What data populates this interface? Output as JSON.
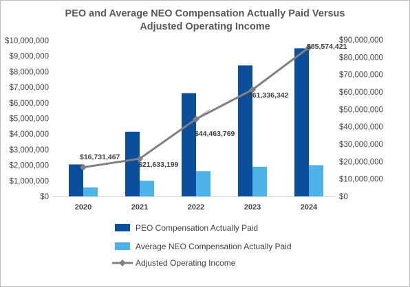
{
  "chart_data": {
    "type": "bar",
    "title": [
      "PEO and Average NEO Compensation Actually Paid Versus",
      "Adjusted Operating Income"
    ],
    "categories": [
      "2020",
      "2021",
      "2022",
      "2023",
      "2024"
    ],
    "series": [
      {
        "name": "PEO Compensation Actually Paid",
        "type": "bar",
        "axis": "left",
        "color": "#0b4f9c",
        "values": [
          2050000,
          4150000,
          6620000,
          8400000,
          9500000
        ]
      },
      {
        "name": "Average NEO Compensation Actually Paid",
        "type": "bar",
        "axis": "left",
        "color": "#4db3e6",
        "values": [
          570000,
          1000000,
          1620000,
          1900000,
          2000000
        ]
      },
      {
        "name": "Adjusted Operating Income",
        "type": "line",
        "axis": "right",
        "color": "#808080",
        "values": [
          16731467,
          21633199,
          44463769,
          61336342,
          85574421
        ],
        "labels": [
          "$16,731,467",
          "$21,633,199",
          "$44,463,769",
          "$61,336,342",
          "$85,574,421"
        ]
      }
    ],
    "y_left": {
      "min": 0,
      "max": 10000000,
      "ticks": [
        "$0",
        "$1,000,000",
        "$2,000,000",
        "$3,000,000",
        "$4,000,000",
        "$5,000,000",
        "$6,000,000",
        "$7,000,000",
        "$8,000,000",
        "$9,000,000",
        "$10,000,000"
      ]
    },
    "y_right": {
      "min": 0,
      "max": 90000000,
      "ticks": [
        "$0",
        "$10,000,000",
        "$20,000,000",
        "$30,000,000",
        "$40,000,000",
        "$50,000,000",
        "$60,000,000",
        "$70,000,000",
        "$80,000,000",
        "$90,000,000"
      ]
    },
    "grid": false,
    "legend_position": "bottom"
  }
}
